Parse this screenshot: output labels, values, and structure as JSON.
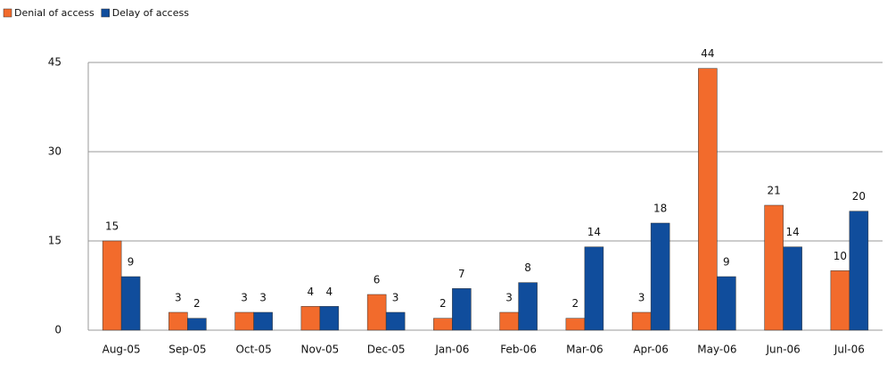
{
  "chart_data": {
    "type": "bar",
    "categories": [
      "Aug-05",
      "Sep-05",
      "Oct-05",
      "Nov-05",
      "Dec-05",
      "Jan-06",
      "Feb-06",
      "Mar-06",
      "Apr-06",
      "May-06",
      "Jun-06",
      "Jul-06"
    ],
    "series": [
      {
        "name": "Denial of access",
        "color": "#f26b2c",
        "values": [
          15,
          3,
          3,
          4,
          6,
          2,
          3,
          2,
          3,
          44,
          21,
          10
        ]
      },
      {
        "name": "Delay of access",
        "color": "#104d9c",
        "values": [
          9,
          2,
          3,
          4,
          3,
          7,
          8,
          14,
          18,
          9,
          14,
          20
        ]
      }
    ],
    "ylim": [
      0,
      45
    ],
    "yticks": [
      0,
      15,
      30,
      45
    ],
    "grid": true,
    "legend": "top-left"
  }
}
